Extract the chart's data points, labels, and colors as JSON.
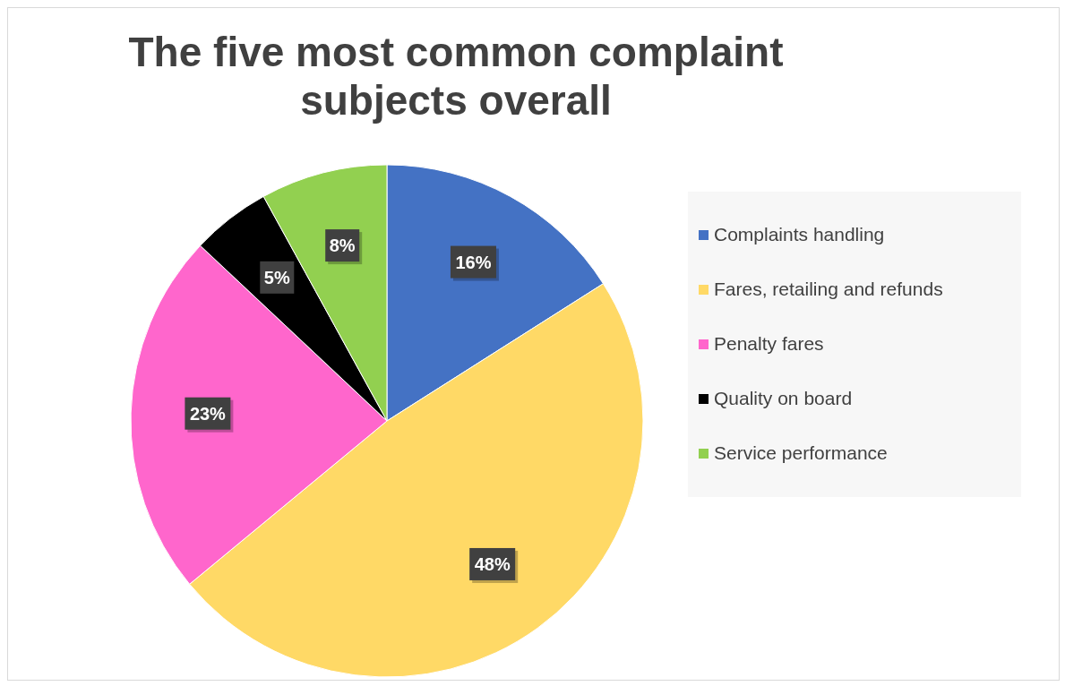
{
  "chart_data": {
    "type": "pie",
    "title": "The five most common complaint subjects overall",
    "categories": [
      "Complaints handling",
      "Fares, retailing and refunds",
      "Penalty fares",
      "Quality on board",
      "Service performance"
    ],
    "values": [
      16,
      48,
      23,
      5,
      8
    ],
    "colors": [
      "#4472c4",
      "#ffd966",
      "#ff66cc",
      "#000000",
      "#92d050"
    ],
    "value_labels": [
      "16%",
      "48%",
      "23%",
      "5%",
      "8%"
    ],
    "legend": "right"
  }
}
